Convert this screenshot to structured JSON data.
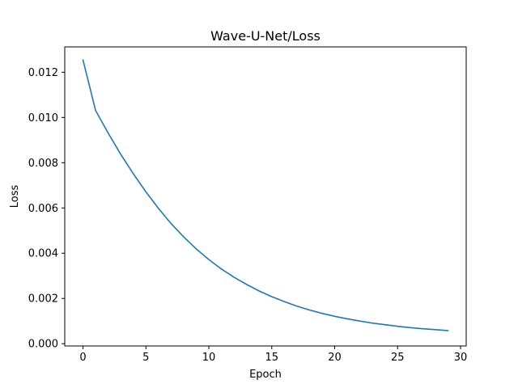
{
  "chart_data": {
    "type": "line",
    "title": "Wave-U-Net/Loss",
    "xlabel": "Epoch",
    "ylabel": "Loss",
    "xlim": [
      -1.45,
      30.45
    ],
    "ylim": [
      -0.0001,
      0.01312
    ],
    "xticks": [
      0,
      5,
      10,
      15,
      20,
      25,
      30
    ],
    "xtick_labels": [
      "0",
      "5",
      "10",
      "15",
      "20",
      "25",
      "30"
    ],
    "yticks": [
      0.0,
      0.002,
      0.004,
      0.006,
      0.008,
      0.01,
      0.012
    ],
    "ytick_labels": [
      "0.000",
      "0.002",
      "0.004",
      "0.006",
      "0.008",
      "0.010",
      "0.012"
    ],
    "grid": false,
    "series": [
      {
        "color": "#1f77b4",
        "x": [
          0,
          1,
          2,
          3,
          4,
          5,
          6,
          7,
          8,
          9,
          10,
          11,
          12,
          13,
          14,
          15,
          16,
          17,
          18,
          19,
          20,
          21,
          22,
          23,
          24,
          25,
          26,
          27,
          28,
          29
        ],
        "y": [
          0.01254,
          0.01031,
          0.00931,
          0.00837,
          0.00751,
          0.00671,
          0.00598,
          0.00531,
          0.00472,
          0.00419,
          0.00372,
          0.0033,
          0.00294,
          0.00262,
          0.00233,
          0.00208,
          0.00186,
          0.00166,
          0.00149,
          0.00134,
          0.00121,
          0.0011,
          0.001,
          0.00091,
          0.00084,
          0.00077,
          0.00071,
          0.00066,
          0.00062,
          0.00058
        ]
      }
    ]
  }
}
